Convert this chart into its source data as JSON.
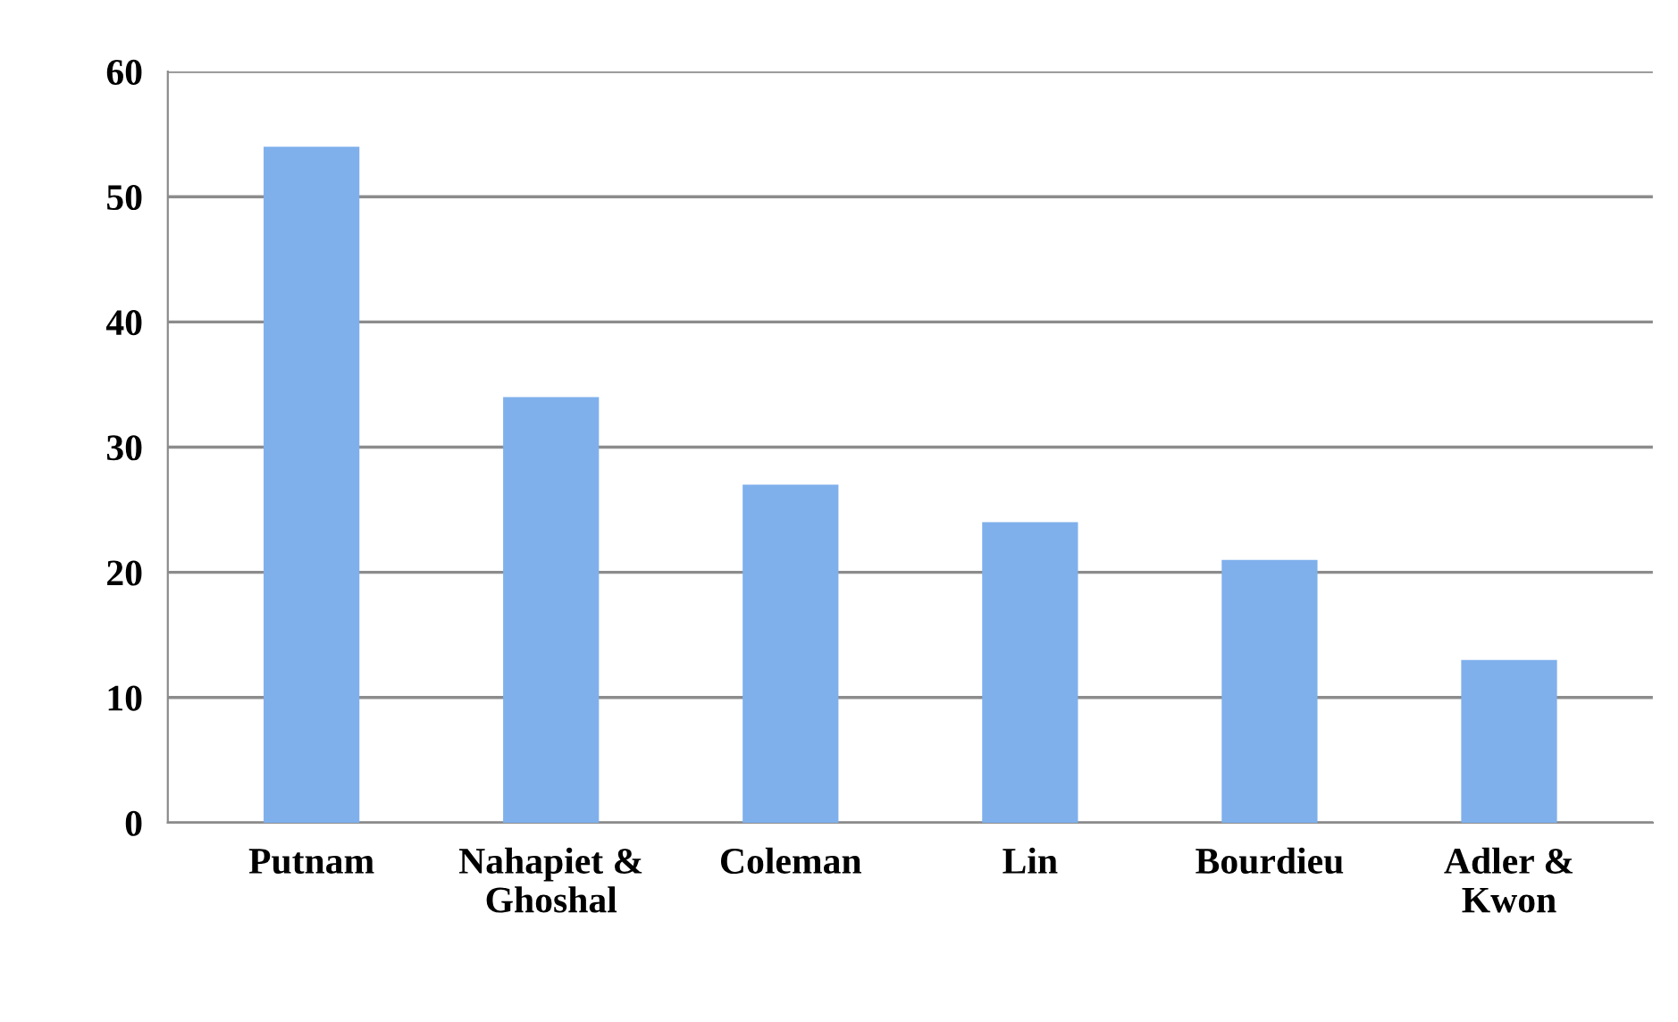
{
  "chart_data": {
    "type": "bar",
    "categories": [
      "Putnam",
      "Nahapiet &\nGhoshal",
      "Coleman",
      "Lin",
      "Bourdieu",
      "Adler &\nKwon"
    ],
    "values": [
      54,
      34,
      27,
      24,
      21,
      13
    ],
    "color": "#7fb0ec",
    "ylim": [
      0,
      60
    ],
    "yticks": [
      0,
      10,
      20,
      30,
      40,
      50,
      60
    ],
    "grid": "y"
  }
}
